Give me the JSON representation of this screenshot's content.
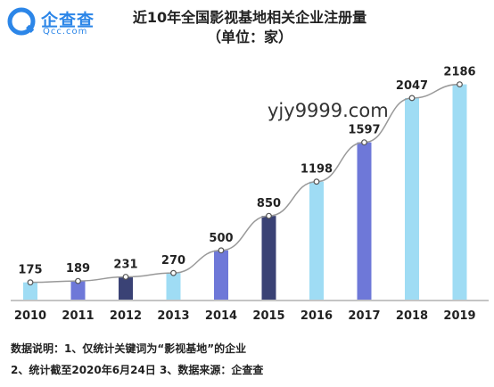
{
  "brand": {
    "name": "企查查",
    "domain": "Qcc.com",
    "color": "#2c86e8"
  },
  "chart_data": {
    "type": "bar",
    "title": "近10年全国影视基地相关企业注册量",
    "subtitle": "（单位：家）",
    "categories": [
      "2010",
      "2011",
      "2012",
      "2013",
      "2014",
      "2015",
      "2016",
      "2017",
      "2018",
      "2019"
    ],
    "values": [
      175,
      189,
      231,
      270,
      500,
      850,
      1198,
      1597,
      2047,
      2186
    ],
    "bar_colors": [
      "#9fdcf4",
      "#6e78d8",
      "#3a4275",
      "#9fdcf4",
      "#6e78d8",
      "#3a4275",
      "#9fdcf4",
      "#6e78d8",
      "#9fdcf4",
      "#9fdcf4"
    ],
    "line_color": "#999999",
    "ylim": [
      0,
      2300
    ],
    "grid": false,
    "legend": "none"
  },
  "watermark": "yjy9999.com",
  "notes": {
    "line1": "数据说明：1、仅统计关键词为“影视基地”的企业",
    "line2": "2、统计截至2020年6月24日   3、数据来源：企查查"
  }
}
